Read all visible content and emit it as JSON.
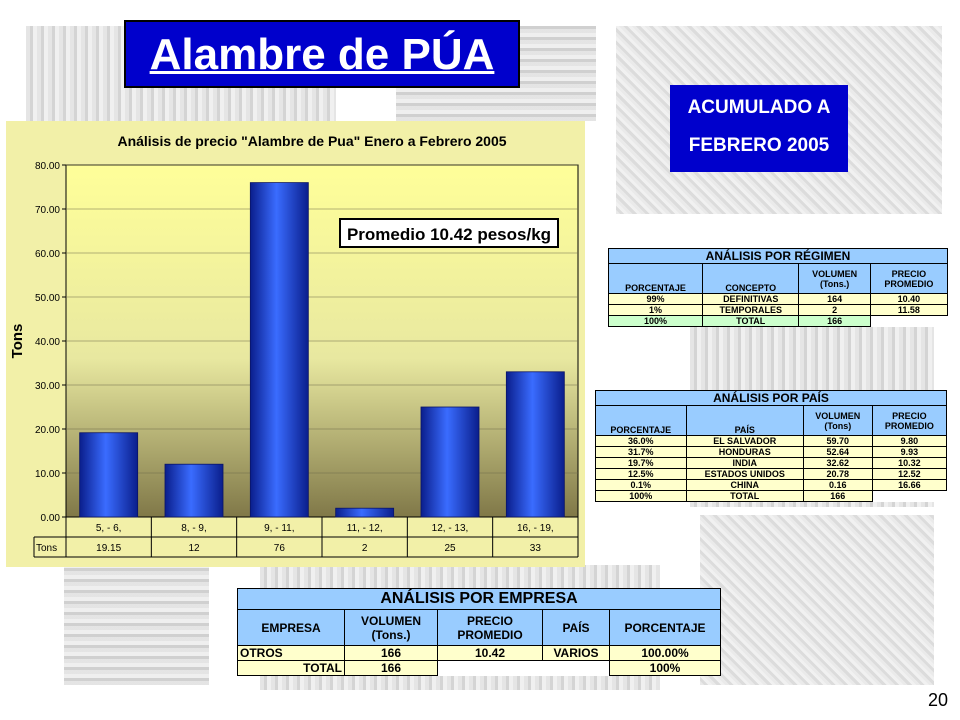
{
  "title": "Alambre de PÚA",
  "subtitle": {
    "line1": "ACUMULADO A",
    "line2": "FEBRERO 2005"
  },
  "page_number": "20",
  "chart_data": {
    "type": "bar",
    "title": "Análisis de precio \"Alambre de Pua\" Enero a Febrero 2005",
    "ylabel": "Tons",
    "xlabel": "",
    "categories": [
      "5, - 6,",
      "8, - 9,",
      "9, - 11,",
      "11, - 12,",
      "12, - 13,",
      "16, - 19,"
    ],
    "values": [
      19.15,
      12,
      76,
      2,
      25,
      33
    ],
    "value_labels": [
      "19.15",
      "12",
      "76",
      "2",
      "25",
      "33"
    ],
    "series": [
      {
        "name": "Tons",
        "values": [
          19.15,
          12,
          76,
          2,
          25,
          33
        ]
      }
    ],
    "ylim": [
      0,
      80
    ],
    "yticks": [
      "0.00",
      "10.00",
      "20.00",
      "30.00",
      "40.00",
      "50.00",
      "60.00",
      "70.00",
      "80.00"
    ],
    "annotation": "Promedio 10.42 pesos/kg",
    "grid": true,
    "bar_color": "#1f3fd6",
    "data_table": true
  },
  "regimen": {
    "title": "ANÁLISIS POR RÉGIMEN",
    "headers": {
      "porcentaje": "PORCENTAJE",
      "concepto": "CONCEPTO",
      "volumen_1": "VOLUMEN",
      "volumen_2": "(Tons.)",
      "precio_1": "PRECIO",
      "precio_2": "PROMEDIO"
    },
    "rows": [
      {
        "porcentaje": "99%",
        "concepto": "DEFINITIVAS",
        "volumen": "164",
        "precio": "10.40"
      },
      {
        "porcentaje": "1%",
        "concepto": "TEMPORALES",
        "volumen": "2",
        "precio": "11.58"
      }
    ],
    "total": {
      "porcentaje": "100%",
      "concepto": "TOTAL",
      "volumen": "166"
    }
  },
  "pais": {
    "title": "ANÁLISIS POR PAÍS",
    "headers": {
      "porcentaje": "PORCENTAJE",
      "pais": "PAÍS",
      "volumen_1": "VOLUMEN",
      "volumen_2": "(Tons)",
      "precio_1": "PRECIO",
      "precio_2": "PROMEDIO"
    },
    "rows": [
      {
        "porcentaje": "36.0%",
        "pais": "EL SALVADOR",
        "volumen": "59.70",
        "precio": "9.80"
      },
      {
        "porcentaje": "31.7%",
        "pais": "HONDURAS",
        "volumen": "52.64",
        "precio": "9.93"
      },
      {
        "porcentaje": "19.7%",
        "pais": "INDIA",
        "volumen": "32.62",
        "precio": "10.32"
      },
      {
        "porcentaje": "12.5%",
        "pais": "ESTADOS UNIDOS",
        "volumen": "20.78",
        "precio": "12.52"
      },
      {
        "porcentaje": "0.1%",
        "pais": "CHINA",
        "volumen": "0.16",
        "precio": "16.66"
      }
    ],
    "total": {
      "porcentaje": "100%",
      "pais": "TOTAL",
      "volumen": "166"
    }
  },
  "empresa": {
    "title": "ANÁLISIS POR EMPRESA",
    "headers": {
      "empresa": "EMPRESA",
      "volumen_1": "VOLUMEN",
      "volumen_2": "(Tons.)",
      "precio_1": "PRECIO",
      "precio_2": "PROMEDIO",
      "pais": "PAÍS",
      "porcentaje": "PORCENTAJE"
    },
    "rows": [
      {
        "empresa": "OTROS",
        "volumen": "166",
        "precio": "10.42",
        "pais": "VARIOS",
        "porcentaje": "100.00%"
      }
    ],
    "total": {
      "empresa": "TOTAL",
      "volumen": "166",
      "porcentaje": "100%"
    }
  }
}
